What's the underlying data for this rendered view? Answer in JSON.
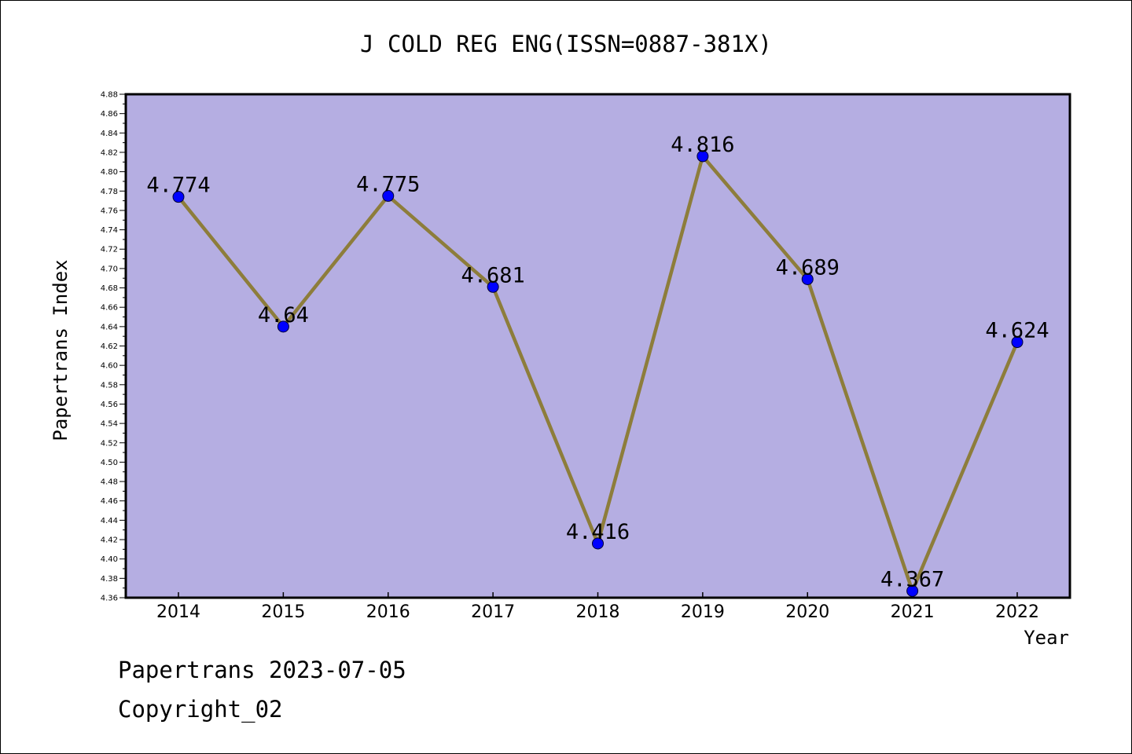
{
  "chart_data": {
    "type": "line",
    "title": "J COLD REG ENG(ISSN=0887-381X)",
    "xlabel": "Year",
    "ylabel": "Papertrans Index",
    "categories": [
      "2014",
      "2015",
      "2016",
      "2017",
      "2018",
      "2019",
      "2020",
      "2021",
      "2022"
    ],
    "series": [
      {
        "values": [
          4.774,
          4.64,
          4.775,
          4.681,
          4.416,
          4.816,
          4.689,
          4.367,
          4.624
        ],
        "labels": [
          "4.774",
          "4.64",
          "4.775",
          "4.681",
          "4.416",
          "4.816",
          "4.689",
          "4.367",
          "4.624"
        ]
      }
    ],
    "ylim": [
      4.36,
      4.88
    ],
    "ytick_step": 0.02,
    "yticks": [
      "4.36",
      "4.38",
      "4.40",
      "4.42",
      "4.44",
      "4.46",
      "4.48",
      "4.50",
      "4.52",
      "4.54",
      "4.56",
      "4.58",
      "4.60",
      "4.62",
      "4.64",
      "4.66",
      "4.68",
      "4.70",
      "4.72",
      "4.74",
      "4.76",
      "4.78",
      "4.80",
      "4.82",
      "4.84",
      "4.86",
      "4.88"
    ],
    "grid": false,
    "legend": "none"
  },
  "footer": {
    "line1": "Papertrans 2023-07-05",
    "line2": "Copyright_02"
  },
  "colors": {
    "plot_background": "#b5aee2",
    "line": "#8d7d3b",
    "marker": "#0000ff"
  }
}
